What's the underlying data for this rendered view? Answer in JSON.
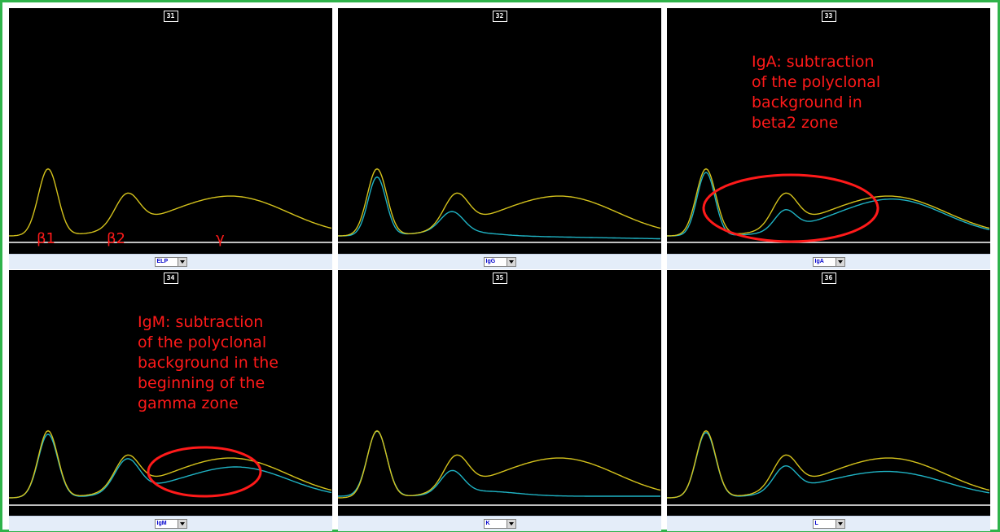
{
  "panels": [
    {
      "number": "31",
      "selector": "ELP",
      "traces": [
        "elp"
      ]
    },
    {
      "number": "32",
      "selector": "IgG",
      "traces": [
        "elp",
        "igg"
      ]
    },
    {
      "number": "33",
      "selector": "IgA",
      "traces": [
        "elp",
        "iga"
      ]
    },
    {
      "number": "34",
      "selector": "IgM",
      "traces": [
        "elp",
        "igm"
      ]
    },
    {
      "number": "35",
      "selector": "K",
      "traces": [
        "elp",
        "kappa"
      ]
    },
    {
      "number": "36",
      "selector": "L",
      "traces": [
        "elp",
        "lambda"
      ]
    }
  ],
  "zone_labels": {
    "b1": "β1",
    "b2": "β2",
    "g": "γ"
  },
  "annotations": {
    "iga": [
      "IgA: subtraction",
      "of the polyclonal",
      "background in",
      "beta2 zone"
    ],
    "igm": [
      "IgM: subtraction",
      "of the polyclonal",
      "background in the",
      "beginning of the",
      "gamma zone"
    ]
  },
  "colors": {
    "frame": "#2fb34a",
    "reference_curve": "#d4c21c",
    "subtracted_curve": "#1fb3c4",
    "baseline": "#ffffff",
    "annotation": "#ff1a1a"
  }
}
